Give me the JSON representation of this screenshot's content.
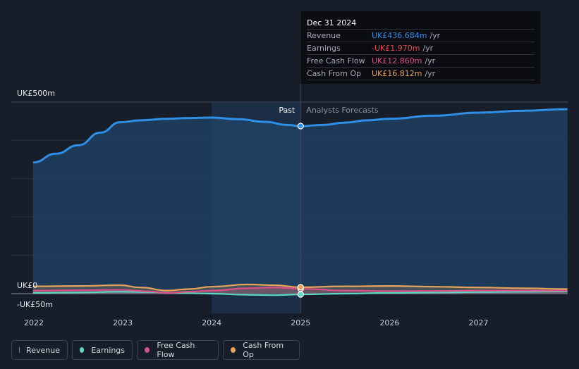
{
  "chart_data": {
    "type": "area",
    "currency": "UK£",
    "y_tick_labels": [
      "UK£500m",
      "UK£0",
      "-UK£50m"
    ],
    "ylim": [
      -50,
      500
    ],
    "x_tick_labels": [
      "2022",
      "2023",
      "2024",
      "2025",
      "2026",
      "2027"
    ],
    "xlim": [
      2021.75,
      2028.0
    ],
    "past_label": "Past",
    "forecast_label": "Analysts Forecasts",
    "divider_x": 2025.0,
    "highlight_start": 2024.0,
    "series": [
      {
        "name": "Revenue",
        "color": "#2f8fe6",
        "points": [
          [
            2021.99,
            342
          ],
          [
            2022.25,
            365
          ],
          [
            2022.5,
            387
          ],
          [
            2022.75,
            420
          ],
          [
            2022.97,
            447
          ],
          [
            2023.2,
            452
          ],
          [
            2023.5,
            456
          ],
          [
            2023.75,
            458
          ],
          [
            2024.0,
            459
          ],
          [
            2024.3,
            455
          ],
          [
            2024.6,
            448
          ],
          [
            2024.85,
            440
          ],
          [
            2025.0,
            437
          ],
          [
            2025.25,
            440
          ],
          [
            2025.5,
            446
          ],
          [
            2025.75,
            452
          ],
          [
            2026.0,
            456
          ],
          [
            2026.5,
            464
          ],
          [
            2027.0,
            472
          ],
          [
            2027.5,
            477
          ],
          [
            2028.0,
            481
          ]
        ]
      },
      {
        "name": "Earnings",
        "color": "#5ed6c4",
        "points": [
          [
            2021.99,
            2
          ],
          [
            2022.5,
            3
          ],
          [
            2022.97,
            5
          ],
          [
            2023.3,
            4
          ],
          [
            2023.6,
            2
          ],
          [
            2024.0,
            0
          ],
          [
            2024.4,
            -3
          ],
          [
            2024.7,
            -4
          ],
          [
            2025.0,
            -2
          ],
          [
            2025.5,
            0
          ],
          [
            2026.0,
            2
          ],
          [
            2026.5,
            3
          ],
          [
            2027.0,
            4
          ],
          [
            2027.5,
            5
          ],
          [
            2028.0,
            6
          ]
        ]
      },
      {
        "name": "Free Cash Flow",
        "color": "#d94f88",
        "points": [
          [
            2021.99,
            8
          ],
          [
            2022.5,
            9
          ],
          [
            2022.97,
            10
          ],
          [
            2023.3,
            6
          ],
          [
            2023.5,
            2
          ],
          [
            2023.75,
            5
          ],
          [
            2024.0,
            8
          ],
          [
            2024.4,
            14
          ],
          [
            2024.7,
            16
          ],
          [
            2025.0,
            12.86
          ],
          [
            2025.5,
            8
          ],
          [
            2026.0,
            7
          ],
          [
            2026.5,
            7
          ],
          [
            2027.0,
            8
          ],
          [
            2027.5,
            8
          ],
          [
            2028.0,
            8
          ]
        ]
      },
      {
        "name": "Cash From Op",
        "color": "#e8a35a",
        "points": [
          [
            2021.99,
            19
          ],
          [
            2022.5,
            20
          ],
          [
            2022.97,
            22
          ],
          [
            2023.2,
            16
          ],
          [
            2023.5,
            8
          ],
          [
            2023.75,
            12
          ],
          [
            2024.0,
            18
          ],
          [
            2024.4,
            24
          ],
          [
            2024.7,
            22
          ],
          [
            2025.0,
            16.812
          ],
          [
            2025.5,
            19
          ],
          [
            2026.0,
            20
          ],
          [
            2026.5,
            18
          ],
          [
            2027.0,
            16
          ],
          [
            2027.5,
            14
          ],
          [
            2028.0,
            12
          ]
        ]
      }
    ],
    "tooltip": {
      "date": "Dec 31 2024",
      "rows": [
        {
          "label": "Revenue",
          "value": "UK£436.684m",
          "unit": "/yr",
          "color": "#2f8fe6"
        },
        {
          "label": "Earnings",
          "value": "-UK£1.970m",
          "unit": "/yr",
          "color": "#e64b4b"
        },
        {
          "label": "Free Cash Flow",
          "value": "UK£12.860m",
          "unit": "/yr",
          "color": "#d94f88"
        },
        {
          "label": "Cash From Op",
          "value": "UK£16.812m",
          "unit": "/yr",
          "color": "#e8a35a"
        }
      ]
    },
    "legend": [
      {
        "name": "Revenue",
        "color": "#2f8fe6"
      },
      {
        "name": "Earnings",
        "color": "#5ed6c4"
      },
      {
        "name": "Free Cash Flow",
        "color": "#d94f88"
      },
      {
        "name": "Cash From Op",
        "color": "#e8a35a"
      }
    ],
    "grid": true
  }
}
